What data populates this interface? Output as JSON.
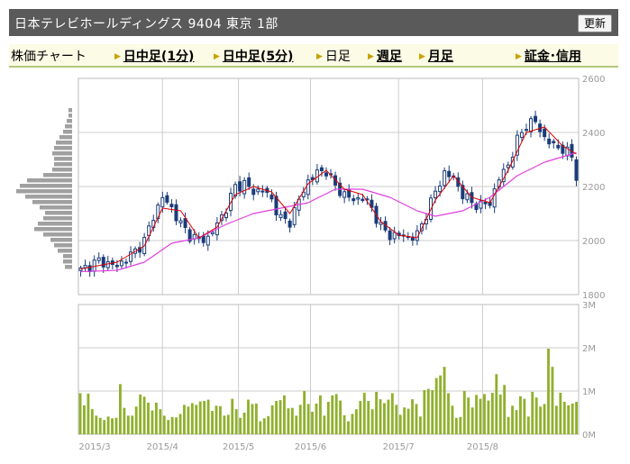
{
  "header": {
    "title": "日本テレビホールディングス 9404 東京 1部",
    "refresh_label": "更新"
  },
  "tabs": [
    {
      "label": "株価チャート",
      "active": false,
      "link": false,
      "arrow": false
    },
    {
      "label": "日中足(1分)",
      "active": false,
      "link": true,
      "arrow": true
    },
    {
      "label": "日中足(5分)",
      "active": false,
      "link": true,
      "arrow": true
    },
    {
      "label": "日足",
      "active": true,
      "link": false,
      "arrow": true
    },
    {
      "label": "週足",
      "active": false,
      "link": true,
      "arrow": true
    },
    {
      "label": "月足",
      "active": false,
      "link": true,
      "arrow": true
    },
    {
      "label": "証金･信用",
      "active": false,
      "link": true,
      "arrow": true
    }
  ],
  "colors": {
    "candle": "#1a3c7a",
    "ma_short": "#e00000",
    "ma_long": "#e040e0",
    "volume": "#8fb02c",
    "profile": "#a0a0a0",
    "grid": "#cccccc",
    "title_bg": "#5a5a5a"
  },
  "chart_data": [
    {
      "type": "candlestick",
      "title": "",
      "ylim": [
        1800,
        2600
      ],
      "y_ticks": [
        "2600",
        "2400",
        "2200",
        "2000",
        "1800"
      ],
      "x_ticks": [
        "2015/3",
        "2015/4",
        "2015/5",
        "2015/6",
        "2015/7",
        "2015/8"
      ],
      "close_waypoints": [
        [
          0,
          1890
        ],
        [
          4,
          1925
        ],
        [
          8,
          1905
        ],
        [
          12,
          1960
        ],
        [
          14,
          2000
        ],
        [
          16,
          2090
        ],
        [
          18,
          2160
        ],
        [
          20,
          2120
        ],
        [
          22,
          2060
        ],
        [
          24,
          2020
        ],
        [
          26,
          2000
        ],
        [
          28,
          2010
        ],
        [
          30,
          2060
        ],
        [
          32,
          2120
        ],
        [
          34,
          2200
        ],
        [
          36,
          2210
        ],
        [
          38,
          2180
        ],
        [
          40,
          2190
        ],
        [
          42,
          2150
        ],
        [
          44,
          2080
        ],
        [
          46,
          2070
        ],
        [
          48,
          2150
        ],
        [
          50,
          2220
        ],
        [
          52,
          2250
        ],
        [
          54,
          2260
        ],
        [
          56,
          2200
        ],
        [
          58,
          2170
        ],
        [
          60,
          2150
        ],
        [
          62,
          2160
        ],
        [
          64,
          2120
        ],
        [
          66,
          2050
        ],
        [
          68,
          2020
        ],
        [
          70,
          2020
        ],
        [
          72,
          2010
        ],
        [
          74,
          2020
        ],
        [
          76,
          2100
        ],
        [
          78,
          2180
        ],
        [
          80,
          2250
        ],
        [
          82,
          2230
        ],
        [
          84,
          2170
        ],
        [
          86,
          2140
        ],
        [
          88,
          2130
        ],
        [
          90,
          2140
        ],
        [
          92,
          2230
        ],
        [
          94,
          2280
        ],
        [
          96,
          2370
        ],
        [
          98,
          2430
        ],
        [
          100,
          2440
        ],
        [
          102,
          2380
        ],
        [
          104,
          2350
        ],
        [
          106,
          2340
        ],
        [
          108,
          2310
        ],
        [
          109,
          2240
        ]
      ],
      "moving_average_short_waypoints": [
        [
          0,
          1895
        ],
        [
          8,
          1920
        ],
        [
          14,
          1980
        ],
        [
          18,
          2120
        ],
        [
          22,
          2110
        ],
        [
          26,
          2010
        ],
        [
          30,
          2050
        ],
        [
          34,
          2170
        ],
        [
          38,
          2200
        ],
        [
          42,
          2180
        ],
        [
          46,
          2100
        ],
        [
          50,
          2210
        ],
        [
          54,
          2260
        ],
        [
          58,
          2190
        ],
        [
          62,
          2170
        ],
        [
          66,
          2070
        ],
        [
          70,
          2020
        ],
        [
          74,
          2010
        ],
        [
          78,
          2150
        ],
        [
          82,
          2240
        ],
        [
          86,
          2160
        ],
        [
          90,
          2140
        ],
        [
          94,
          2260
        ],
        [
          98,
          2400
        ],
        [
          102,
          2420
        ],
        [
          106,
          2350
        ],
        [
          109,
          2320
        ]
      ],
      "moving_average_long_waypoints": [
        [
          0,
          1885
        ],
        [
          8,
          1890
        ],
        [
          14,
          1920
        ],
        [
          20,
          1990
        ],
        [
          26,
          2010
        ],
        [
          32,
          2060
        ],
        [
          38,
          2100
        ],
        [
          44,
          2120
        ],
        [
          50,
          2140
        ],
        [
          56,
          2190
        ],
        [
          62,
          2190
        ],
        [
          68,
          2160
        ],
        [
          74,
          2110
        ],
        [
          78,
          2090
        ],
        [
          84,
          2110
        ],
        [
          90,
          2160
        ],
        [
          96,
          2240
        ],
        [
          102,
          2290
        ],
        [
          106,
          2310
        ],
        [
          109,
          2325
        ]
      ]
    },
    {
      "type": "bar",
      "title": "",
      "ylim": [
        0,
        3000000
      ],
      "y_ticks": [
        "3M",
        "2M",
        "1M",
        "0M"
      ],
      "values": [
        950000,
        670000,
        940000,
        580000,
        430000,
        380000,
        330000,
        410000,
        370000,
        380000,
        1160000,
        610000,
        430000,
        430000,
        640000,
        920000,
        870000,
        730000,
        550000,
        730000,
        580000,
        430000,
        330000,
        400000,
        390000,
        470000,
        680000,
        640000,
        720000,
        680000,
        760000,
        770000,
        800000,
        540000,
        660000,
        650000,
        430000,
        450000,
        820000,
        580000,
        380000,
        500000,
        800000,
        700000,
        710000,
        300000,
        370000,
        420000,
        670000,
        770000,
        790000,
        900000,
        600000,
        610000,
        430000,
        680000,
        1000000,
        700000,
        520000,
        710000,
        900000,
        430000,
        750000,
        900000,
        930000,
        780000,
        440000,
        300000,
        470000,
        580000,
        770000,
        960000,
        770000,
        580000,
        980000,
        810000,
        720000,
        800000,
        950000,
        680000,
        450000,
        620000,
        590000,
        810000,
        700000,
        410000,
        1020000,
        1050000,
        1020000,
        1300000,
        1360000,
        1560000,
        950000,
        660000,
        380000,
        400000,
        1000000,
        850000,
        620000,
        910000,
        820000,
        930000,
        780000,
        960000,
        1390000,
        920000,
        1140000,
        400000,
        660000,
        560000,
        880000,
        820000,
        410000,
        980000,
        850000,
        640000,
        700000,
        1980000,
        1560000,
        660000,
        960000,
        750000,
        670000,
        710000,
        750000
      ]
    }
  ]
}
